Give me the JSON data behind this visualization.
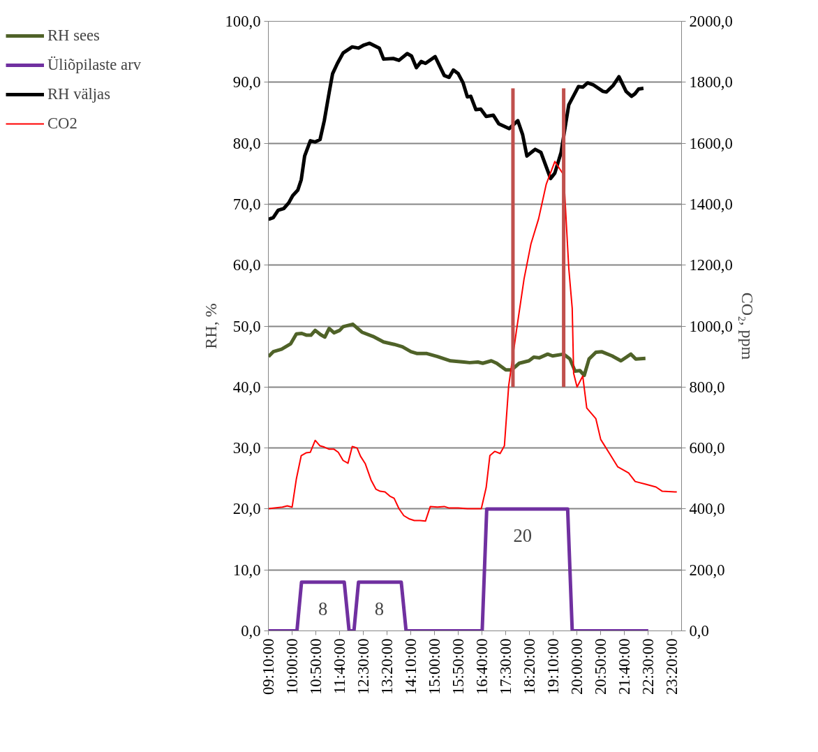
{
  "chart_data": {
    "type": "line",
    "xlabel": null,
    "ylabel": "RH, %",
    "y2label": "CO₂, ppm",
    "xlim": [
      9.1667,
      23.6667
    ],
    "xticks": [
      {
        "value": 9.1667,
        "label": "09:10:00"
      },
      {
        "value": 10,
        "label": "10:00:00"
      },
      {
        "value": 10.8333,
        "label": "10:50:00"
      },
      {
        "value": 11.6667,
        "label": "11:40:00"
      },
      {
        "value": 12.5,
        "label": "12:30:00"
      },
      {
        "value": 13.3333,
        "label": "13:20:00"
      },
      {
        "value": 14.1667,
        "label": "14:10:00"
      },
      {
        "value": 15,
        "label": "15:00:00"
      },
      {
        "value": 15.8333,
        "label": "15:50:00"
      },
      {
        "value": 16.6667,
        "label": "16:40:00"
      },
      {
        "value": 17.5,
        "label": "17:30:00"
      },
      {
        "value": 18.3333,
        "label": "18:20:00"
      },
      {
        "value": 19.1667,
        "label": "19:10:00"
      },
      {
        "value": 20,
        "label": "20:00:00"
      },
      {
        "value": 20.8333,
        "label": "20:50:00"
      },
      {
        "value": 21.6667,
        "label": "21:40:00"
      },
      {
        "value": 22.5,
        "label": "22:30:00"
      },
      {
        "value": 23.3333,
        "label": "23:20:00"
      }
    ],
    "ylim": [
      0,
      100
    ],
    "yticks": [
      {
        "value": 0,
        "label": "0,0"
      },
      {
        "value": 10,
        "label": "10,0"
      },
      {
        "value": 20,
        "label": "20,0"
      },
      {
        "value": 30,
        "label": "30,0"
      },
      {
        "value": 40,
        "label": "40,0"
      },
      {
        "value": 50,
        "label": "50,0"
      },
      {
        "value": 60,
        "label": "60,0"
      },
      {
        "value": 70,
        "label": "70,0"
      },
      {
        "value": 80,
        "label": "80,0"
      },
      {
        "value": 90,
        "label": "90,0"
      },
      {
        "value": 100,
        "label": "100,0"
      }
    ],
    "y2lim": [
      0,
      2000
    ],
    "y2ticks": [
      {
        "value": 0,
        "label": "0,0"
      },
      {
        "value": 200,
        "label": "200,0"
      },
      {
        "value": 400,
        "label": "400,0"
      },
      {
        "value": 600,
        "label": "600,0"
      },
      {
        "value": 800,
        "label": "800,0"
      },
      {
        "value": 1000,
        "label": "1000,0"
      },
      {
        "value": 1200,
        "label": "1200,0"
      },
      {
        "value": 1400,
        "label": "1400,0"
      },
      {
        "value": 1600,
        "label": "1600,0"
      },
      {
        "value": 1800,
        "label": "1800,0"
      },
      {
        "value": 2000,
        "label": "2000,0"
      }
    ],
    "grid": "y",
    "legend": "top left",
    "marker": "none",
    "line_style": "solid",
    "series": [
      {
        "name": "RH sees",
        "color": "#4f6228",
        "x": [
          9.17,
          9.34,
          9.63,
          9.95,
          10.15,
          10.34,
          10.51,
          10.66,
          10.81,
          11.0,
          11.15,
          11.3,
          11.47,
          11.67,
          11.79,
          12.13,
          12.45,
          12.84,
          13.21,
          13.58,
          13.87,
          14.17,
          14.39,
          14.73,
          15.1,
          15.56,
          16.03,
          16.23,
          16.52,
          16.69,
          16.99,
          17.18,
          17.5,
          17.7,
          17.97,
          18.31,
          18.48,
          18.68,
          18.97,
          19.14,
          19.53,
          19.75,
          19.93,
          20.1,
          20.25,
          20.42,
          20.66,
          20.86,
          21.23,
          21.54,
          21.89,
          22.06,
          22.4
        ],
        "values": [
          45.0,
          45.8,
          46.2,
          47.1,
          48.7,
          48.8,
          48.5,
          48.5,
          49.3,
          48.6,
          48.2,
          49.6,
          48.9,
          49.3,
          49.9,
          50.3,
          49.0,
          48.3,
          47.4,
          47.0,
          46.6,
          45.8,
          45.5,
          45.5,
          45.0,
          44.3,
          44.1,
          44.0,
          44.1,
          43.9,
          44.3,
          43.9,
          42.8,
          42.8,
          43.9,
          44.3,
          44.9,
          44.8,
          45.4,
          45.1,
          45.4,
          44.6,
          42.6,
          42.7,
          41.9,
          44.6,
          45.7,
          45.8,
          45.1,
          44.3,
          45.4,
          44.6,
          44.7
        ]
      },
      {
        "name": "Üliõpilaste arv",
        "color": "#7030a0",
        "x": [
          9.17,
          10.17,
          10.33,
          11.83,
          12.0,
          12.17,
          12.33,
          13.83,
          14.0,
          16.67,
          16.83,
          19.67,
          19.83,
          22.5
        ],
        "values": [
          0,
          0,
          8,
          8,
          0,
          0,
          8,
          8,
          0,
          0,
          20,
          20,
          0,
          0
        ]
      },
      {
        "name": "RH väljas",
        "color": "#000000",
        "x": [
          9.17,
          9.34,
          9.51,
          9.71,
          9.88,
          10.02,
          10.2,
          10.32,
          10.44,
          10.64,
          10.81,
          10.98,
          11.13,
          11.3,
          11.42,
          11.59,
          11.79,
          12.11,
          12.33,
          12.52,
          12.72,
          13.06,
          13.21,
          13.55,
          13.75,
          14.04,
          14.19,
          14.36,
          14.53,
          14.68,
          15.02,
          15.34,
          15.51,
          15.66,
          15.83,
          16.0,
          16.15,
          16.27,
          16.45,
          16.62,
          16.81,
          17.06,
          17.25,
          17.62,
          17.92,
          18.09,
          18.24,
          18.53,
          18.73,
          19.07,
          19.22,
          19.44,
          19.58,
          19.71,
          20.05,
          20.2,
          20.37,
          20.56,
          20.91,
          21.03,
          21.27,
          21.47,
          21.72,
          21.91,
          22.03,
          22.16,
          22.33
        ],
        "values": [
          67.5,
          67.8,
          69.0,
          69.3,
          70.2,
          71.4,
          72.3,
          74.0,
          77.9,
          80.4,
          80.2,
          80.6,
          83.7,
          88.3,
          91.4,
          93.1,
          94.8,
          95.8,
          95.6,
          96.1,
          96.4,
          95.6,
          93.8,
          93.9,
          93.6,
          94.7,
          94.3,
          92.4,
          93.4,
          93.1,
          94.2,
          91.1,
          90.8,
          92.0,
          91.4,
          89.9,
          87.6,
          87.7,
          85.5,
          85.6,
          84.4,
          84.6,
          83.2,
          82.4,
          83.7,
          81.4,
          77.9,
          79.0,
          78.5,
          74.2,
          75.1,
          78.5,
          82.6,
          86.3,
          89.3,
          89.2,
          89.9,
          89.6,
          88.5,
          88.4,
          89.5,
          90.9,
          88.5,
          87.7,
          88.1,
          88.9,
          89.0
        ]
      },
      {
        "name": "CO2",
        "color": "#ff0000",
        "axis": "y2",
        "x": [
          9.17,
          9.66,
          9.83,
          10.0,
          10.15,
          10.32,
          10.49,
          10.64,
          10.81,
          10.98,
          11.13,
          11.3,
          11.47,
          11.62,
          11.79,
          11.96,
          12.11,
          12.28,
          12.4,
          12.57,
          12.77,
          12.94,
          13.09,
          13.26,
          13.43,
          13.58,
          13.75,
          13.92,
          14.12,
          14.29,
          14.49,
          14.68,
          14.85,
          15.1,
          15.34,
          15.51,
          15.83,
          16.15,
          16.64,
          16.81,
          16.94,
          17.11,
          17.3,
          17.45,
          17.6,
          17.87,
          18.14,
          18.38,
          18.65,
          18.92,
          19.22,
          19.53,
          19.71,
          19.83,
          19.88,
          20.0,
          20.2,
          20.34,
          20.66,
          20.83,
          21.15,
          21.43,
          21.81,
          22.04,
          22.41,
          22.77,
          22.99,
          23.43,
          23.5
        ],
        "values": [
          401,
          406,
          410,
          406,
          499,
          575,
          584,
          586,
          625,
          607,
          603,
          596,
          596,
          586,
          559,
          550,
          605,
          600,
          573,
          548,
          495,
          465,
          458,
          456,
          442,
          435,
          401,
          378,
          367,
          362,
          362,
          360,
          408,
          406,
          408,
          403,
          403,
          401,
          401,
          470,
          575,
          589,
          582,
          607,
          804,
          983,
          1155,
          1269,
          1352,
          1466,
          1540,
          1496,
          1189,
          1058,
          845,
          800,
          836,
          731,
          696,
          628,
          580,
          538,
          518,
          490,
          481,
          472,
          458,
          456,
          456
        ]
      },
      {
        "color": "#c0504d",
        "x": [
          17.75,
          17.75
        ],
        "values": [
          40,
          89
        ]
      },
      {
        "color": "#c0504d",
        "x": [
          19.53,
          19.53
        ],
        "values": [
          40,
          89
        ]
      }
    ],
    "annotations": [
      {
        "text": "8",
        "x": 11.08,
        "y": 8
      },
      {
        "text": "8",
        "x": 13.06,
        "y": 8
      },
      {
        "text": "20",
        "x": 18.09,
        "y": 20
      }
    ]
  }
}
